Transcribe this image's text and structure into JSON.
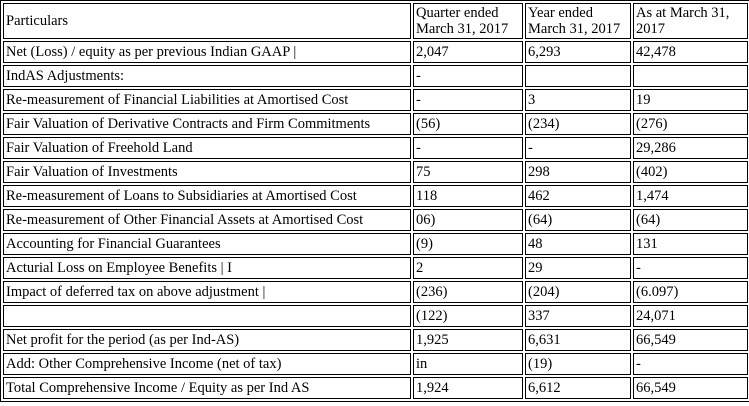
{
  "table": {
    "headers": {
      "particulars": "Particulars",
      "quarter_line1": "Quarter ended",
      "quarter_line2": "March 31, 2017",
      "year_line1": "Year ended",
      "year_line2": "March 31, 2017",
      "asat_line1": "As at March 31,",
      "asat_line2": "2017"
    },
    "rows": [
      {
        "label": "Net (Loss) / equity as per previous Indian GAAP |",
        "quarter": "2,047",
        "year": "6,293",
        "as_at": "42,478"
      },
      {
        "label": "IndAS Adjustments:",
        "quarter": "-",
        "year": "",
        "as_at": ""
      },
      {
        "label": "Re-measurement of Financial Liabilities at Amortised Cost",
        "quarter": "-",
        "year": "3",
        "as_at": "19"
      },
      {
        "label": "Fair Valuation of Derivative Contracts and Firm Commitments",
        "quarter": "(56)",
        "year": "(234)",
        "as_at": "(276)"
      },
      {
        "label": "Fair Valuation of Freehold Land",
        "quarter": "-",
        "year": "-",
        "as_at": "29,286"
      },
      {
        "label": "Fair Valuation of Investments",
        "quarter": "75",
        "year": "298",
        "as_at": "(402)"
      },
      {
        "label": "Re-measurement of Loans to Subsidiaries at Amortised Cost",
        "quarter": "118",
        "year": "462",
        "as_at": "1,474"
      },
      {
        "label": "Re-measurement of Other Financial Assets at Amortised Cost",
        "quarter": "06)",
        "year": "(64)",
        "as_at": "(64)"
      },
      {
        "label": "Accounting for Financial Guarantees",
        "quarter": "(9)",
        "year": "48",
        "as_at": "131"
      },
      {
        "label": "Acturial Loss on Employee Benefits | I",
        "quarter": "2",
        "year": "29",
        "as_at": "-"
      },
      {
        "label": "Impact of deferred tax on above adjustment |",
        "quarter": "(236)",
        "year": "(204)",
        "as_at": "(6.097)"
      },
      {
        "label": "",
        "quarter": "(122)",
        "year": "337",
        "as_at": "24,071"
      },
      {
        "label": "Net profit for the period (as per Ind-AS)",
        "quarter": "1,925",
        "year": "6,631",
        "as_at": "66,549"
      },
      {
        "label": "Add: Other Comprehensive Income (net of tax)",
        "quarter": "in",
        "year": "(19)",
        "as_at": "-"
      },
      {
        "label": "Total Comprehensive Income / Equity as per Ind AS",
        "quarter": "1,924",
        "year": "6,612",
        "as_at": "66,549"
      }
    ]
  }
}
